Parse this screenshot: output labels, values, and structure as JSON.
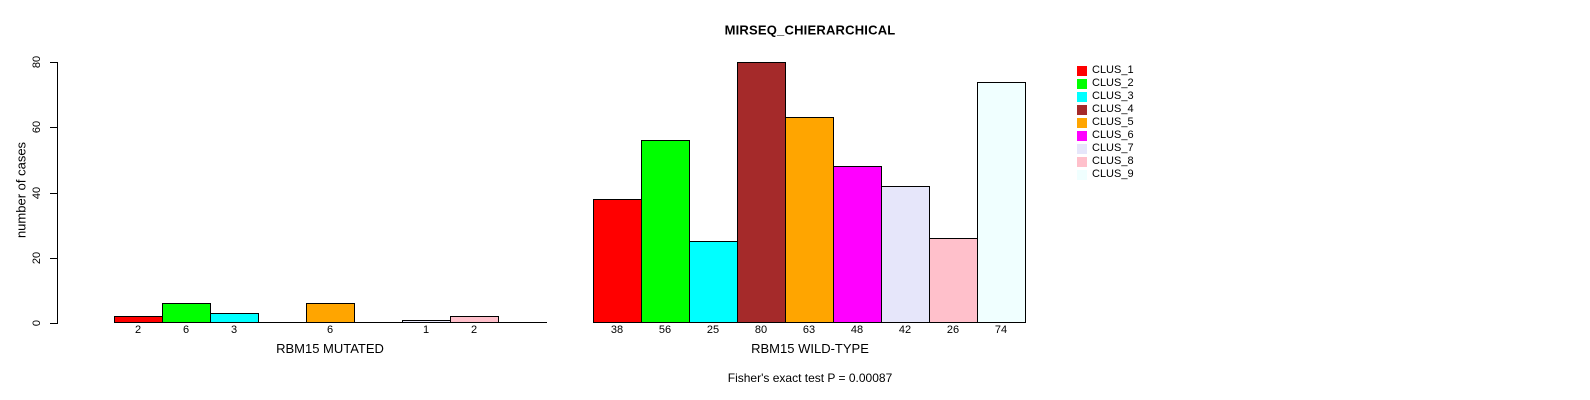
{
  "chart_data": {
    "type": "bar",
    "title": "MIRSEQ_CHIERARCHICAL",
    "ylabel": "number of cases",
    "ylim": [
      0,
      80
    ],
    "yticks": [
      0,
      20,
      40,
      60,
      80
    ],
    "grid": false,
    "legend_position": "top-right",
    "bar_edge_color": "#000000",
    "clusters": [
      "CLUS_1",
      "CLUS_2",
      "CLUS_3",
      "CLUS_4",
      "CLUS_5",
      "CLUS_6",
      "CLUS_7",
      "CLUS_8",
      "CLUS_9"
    ],
    "colors": [
      "#FF0000",
      "#00FF00",
      "#00FFFF",
      "#A52A2A",
      "#FFA500",
      "#FF00FF",
      "#E6E6FA",
      "#FFC0CB",
      "#F0FFFF"
    ],
    "panels": [
      {
        "xlabel": "RBM15 MUTATED",
        "values": [
          2,
          6,
          3,
          0,
          6,
          0,
          1,
          2,
          0
        ]
      },
      {
        "xlabel": "RBM15 WILD-TYPE",
        "values": [
          38,
          56,
          25,
          80,
          63,
          48,
          42,
          26,
          74
        ]
      }
    ],
    "annotation": "Fisher's exact test P = 0.00087"
  }
}
